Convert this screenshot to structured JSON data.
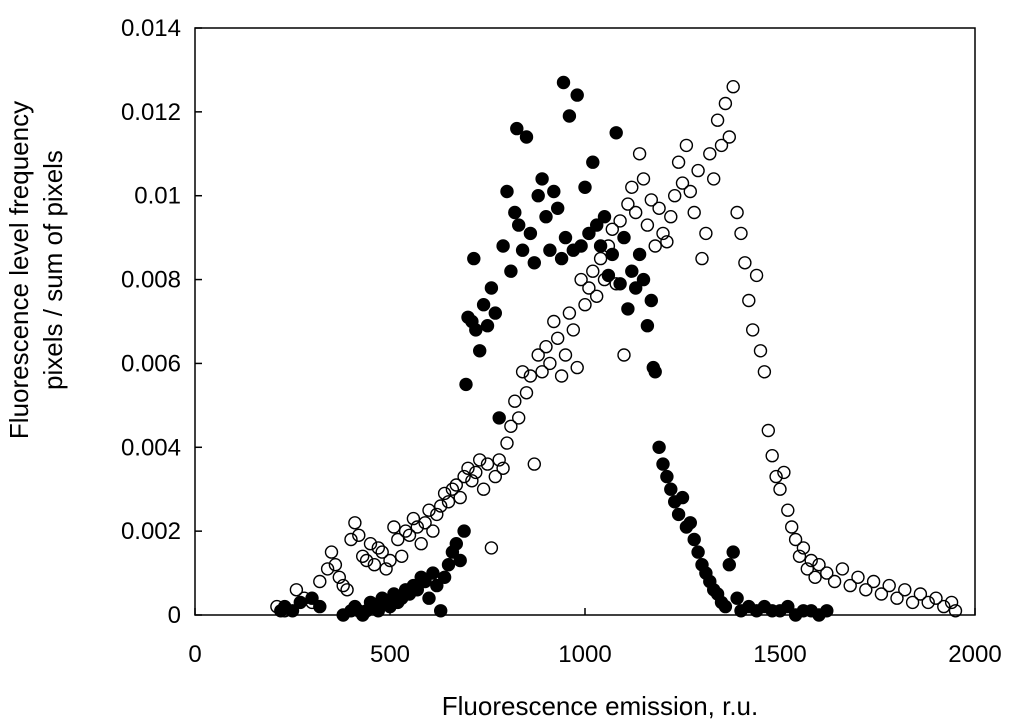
{
  "chart_data": {
    "type": "scatter",
    "title": "",
    "xlabel": "Fluorescence emission, r.u.",
    "ylabel_lines": [
      "Fluorescence level frequency",
      "pixels / sum of pixels"
    ],
    "xlim": [
      0,
      2000
    ],
    "ylim": [
      0,
      0.014
    ],
    "grid": false,
    "legend": "none",
    "x_tick_labels": [
      "0",
      "500",
      "1000",
      "1500",
      "2000"
    ],
    "x_ticks": [
      0,
      500,
      1000,
      1500,
      2000
    ],
    "y_tick_labels": [
      "0",
      "0.002",
      "0.004",
      "0.006",
      "0.008",
      "0.01",
      "0.012",
      "0.014"
    ],
    "y_ticks": [
      0,
      0.002,
      0.004,
      0.006,
      0.008,
      0.01,
      0.012,
      0.014
    ],
    "series": [
      {
        "marker": "filled-circle",
        "color": "#000000",
        "points": [
          [
            220,
            0.0001
          ],
          [
            230,
            0.0002
          ],
          [
            250,
            0.0001
          ],
          [
            270,
            0.0003
          ],
          [
            300,
            0.0004
          ],
          [
            320,
            0.0002
          ],
          [
            380,
            0.0
          ],
          [
            400,
            0.0001
          ],
          [
            410,
            0.0002
          ],
          [
            420,
            0.0001
          ],
          [
            430,
            0.0
          ],
          [
            440,
            0.0001
          ],
          [
            450,
            0.0003
          ],
          [
            460,
            0.0002
          ],
          [
            470,
            0.0001
          ],
          [
            480,
            0.0004
          ],
          [
            490,
            0.0003
          ],
          [
            500,
            0.0002
          ],
          [
            510,
            0.0005
          ],
          [
            520,
            0.0003
          ],
          [
            530,
            0.0004
          ],
          [
            540,
            0.0006
          ],
          [
            550,
            0.0005
          ],
          [
            560,
            0.0007
          ],
          [
            570,
            0.0006
          ],
          [
            580,
            0.0009
          ],
          [
            590,
            0.0008
          ],
          [
            600,
            0.0004
          ],
          [
            610,
            0.001
          ],
          [
            620,
            0.0007
          ],
          [
            630,
            0.0001
          ],
          [
            640,
            0.0009
          ],
          [
            650,
            0.0012
          ],
          [
            660,
            0.0015
          ],
          [
            670,
            0.0017
          ],
          [
            680,
            0.0013
          ],
          [
            690,
            0.002
          ],
          [
            695,
            0.0055
          ],
          [
            700,
            0.0071
          ],
          [
            710,
            0.007
          ],
          [
            715,
            0.0085
          ],
          [
            720,
            0.0068
          ],
          [
            730,
            0.0063
          ],
          [
            740,
            0.0074
          ],
          [
            750,
            0.0069
          ],
          [
            760,
            0.0078
          ],
          [
            770,
            0.0072
          ],
          [
            780,
            0.0047
          ],
          [
            790,
            0.0088
          ],
          [
            800,
            0.0101
          ],
          [
            810,
            0.0082
          ],
          [
            820,
            0.0096
          ],
          [
            825,
            0.0116
          ],
          [
            830,
            0.0093
          ],
          [
            840,
            0.0087
          ],
          [
            850,
            0.0114
          ],
          [
            860,
            0.0091
          ],
          [
            870,
            0.0084
          ],
          [
            880,
            0.01
          ],
          [
            890,
            0.0104
          ],
          [
            900,
            0.0095
          ],
          [
            910,
            0.0087
          ],
          [
            920,
            0.0101
          ],
          [
            930,
            0.0097
          ],
          [
            940,
            0.0085
          ],
          [
            945,
            0.0127
          ],
          [
            950,
            0.009
          ],
          [
            960,
            0.0119
          ],
          [
            970,
            0.0087
          ],
          [
            980,
            0.0124
          ],
          [
            990,
            0.0088
          ],
          [
            1000,
            0.0102
          ],
          [
            1010,
            0.0091
          ],
          [
            1020,
            0.0108
          ],
          [
            1030,
            0.0093
          ],
          [
            1040,
            0.0088
          ],
          [
            1050,
            0.0095
          ],
          [
            1060,
            0.0081
          ],
          [
            1070,
            0.0086
          ],
          [
            1080,
            0.0115
          ],
          [
            1090,
            0.0079
          ],
          [
            1100,
            0.009
          ],
          [
            1110,
            0.0073
          ],
          [
            1120,
            0.0082
          ],
          [
            1130,
            0.0078
          ],
          [
            1140,
            0.0086
          ],
          [
            1150,
            0.008
          ],
          [
            1160,
            0.0069
          ],
          [
            1170,
            0.0075
          ],
          [
            1175,
            0.0059
          ],
          [
            1180,
            0.0058
          ],
          [
            1190,
            0.004
          ],
          [
            1200,
            0.0036
          ],
          [
            1210,
            0.0033
          ],
          [
            1220,
            0.003
          ],
          [
            1230,
            0.0027
          ],
          [
            1240,
            0.0024
          ],
          [
            1250,
            0.0028
          ],
          [
            1260,
            0.0021
          ],
          [
            1270,
            0.0022
          ],
          [
            1280,
            0.0018
          ],
          [
            1290,
            0.0015
          ],
          [
            1300,
            0.0012
          ],
          [
            1310,
            0.001
          ],
          [
            1320,
            0.0008
          ],
          [
            1330,
            0.0006
          ],
          [
            1340,
            0.0005
          ],
          [
            1350,
            0.0003
          ],
          [
            1360,
            0.0002
          ],
          [
            1370,
            0.0012
          ],
          [
            1380,
            0.0015
          ],
          [
            1390,
            0.0004
          ],
          [
            1400,
            0.0001
          ],
          [
            1420,
            0.0002
          ],
          [
            1440,
            0.0001
          ],
          [
            1460,
            0.0002
          ],
          [
            1480,
            0.0001
          ],
          [
            1500,
            0.0001
          ],
          [
            1520,
            0.0002
          ],
          [
            1540,
            0.0
          ],
          [
            1560,
            0.0001
          ],
          [
            1580,
            0.0001
          ],
          [
            1600,
            0.0
          ],
          [
            1620,
            0.0001
          ]
        ]
      },
      {
        "marker": "open-circle",
        "color": "#000000",
        "points": [
          [
            210,
            0.0002
          ],
          [
            230,
            0.0001
          ],
          [
            260,
            0.0006
          ],
          [
            280,
            0.0004
          ],
          [
            300,
            0.0003
          ],
          [
            320,
            0.0008
          ],
          [
            340,
            0.0011
          ],
          [
            350,
            0.0015
          ],
          [
            360,
            0.0012
          ],
          [
            370,
            0.0009
          ],
          [
            380,
            0.0007
          ],
          [
            390,
            0.0006
          ],
          [
            400,
            0.0018
          ],
          [
            410,
            0.0022
          ],
          [
            420,
            0.0019
          ],
          [
            430,
            0.0014
          ],
          [
            440,
            0.0013
          ],
          [
            450,
            0.0017
          ],
          [
            460,
            0.0012
          ],
          [
            470,
            0.0016
          ],
          [
            480,
            0.0015
          ],
          [
            490,
            0.0011
          ],
          [
            500,
            0.0013
          ],
          [
            510,
            0.0021
          ],
          [
            520,
            0.0018
          ],
          [
            530,
            0.0014
          ],
          [
            540,
            0.002
          ],
          [
            550,
            0.0019
          ],
          [
            560,
            0.0023
          ],
          [
            570,
            0.0021
          ],
          [
            580,
            0.0017
          ],
          [
            590,
            0.0022
          ],
          [
            600,
            0.0025
          ],
          [
            610,
            0.002
          ],
          [
            620,
            0.0024
          ],
          [
            630,
            0.0026
          ],
          [
            640,
            0.0029
          ],
          [
            650,
            0.0027
          ],
          [
            660,
            0.003
          ],
          [
            670,
            0.0031
          ],
          [
            680,
            0.0028
          ],
          [
            690,
            0.0033
          ],
          [
            700,
            0.0035
          ],
          [
            710,
            0.0032
          ],
          [
            720,
            0.0034
          ],
          [
            730,
            0.0037
          ],
          [
            740,
            0.003
          ],
          [
            750,
            0.0036
          ],
          [
            760,
            0.0016
          ],
          [
            770,
            0.0033
          ],
          [
            780,
            0.0037
          ],
          [
            790,
            0.0035
          ],
          [
            800,
            0.0041
          ],
          [
            810,
            0.0045
          ],
          [
            820,
            0.0051
          ],
          [
            830,
            0.0047
          ],
          [
            840,
            0.0058
          ],
          [
            850,
            0.0053
          ],
          [
            860,
            0.0057
          ],
          [
            870,
            0.0036
          ],
          [
            880,
            0.0062
          ],
          [
            890,
            0.0058
          ],
          [
            900,
            0.0064
          ],
          [
            910,
            0.006
          ],
          [
            920,
            0.007
          ],
          [
            930,
            0.0066
          ],
          [
            940,
            0.0057
          ],
          [
            950,
            0.0062
          ],
          [
            960,
            0.0072
          ],
          [
            970,
            0.0068
          ],
          [
            980,
            0.0059
          ],
          [
            990,
            0.008
          ],
          [
            1000,
            0.0074
          ],
          [
            1010,
            0.0078
          ],
          [
            1020,
            0.0082
          ],
          [
            1030,
            0.0076
          ],
          [
            1040,
            0.0085
          ],
          [
            1050,
            0.008
          ],
          [
            1060,
            0.0088
          ],
          [
            1070,
            0.0092
          ],
          [
            1080,
            0.0079
          ],
          [
            1090,
            0.0094
          ],
          [
            1100,
            0.0062
          ],
          [
            1110,
            0.0098
          ],
          [
            1120,
            0.0102
          ],
          [
            1130,
            0.0096
          ],
          [
            1140,
            0.011
          ],
          [
            1150,
            0.0104
          ],
          [
            1160,
            0.0093
          ],
          [
            1170,
            0.0099
          ],
          [
            1180,
            0.0088
          ],
          [
            1190,
            0.0097
          ],
          [
            1200,
            0.0091
          ],
          [
            1210,
            0.0089
          ],
          [
            1220,
            0.0095
          ],
          [
            1230,
            0.01
          ],
          [
            1240,
            0.0108
          ],
          [
            1250,
            0.0103
          ],
          [
            1260,
            0.0112
          ],
          [
            1270,
            0.0101
          ],
          [
            1280,
            0.0096
          ],
          [
            1290,
            0.0106
          ],
          [
            1300,
            0.0085
          ],
          [
            1310,
            0.0091
          ],
          [
            1320,
            0.011
          ],
          [
            1330,
            0.0104
          ],
          [
            1340,
            0.0118
          ],
          [
            1350,
            0.0112
          ],
          [
            1360,
            0.0122
          ],
          [
            1370,
            0.0114
          ],
          [
            1380,
            0.0126
          ],
          [
            1390,
            0.0096
          ],
          [
            1400,
            0.0091
          ],
          [
            1410,
            0.0084
          ],
          [
            1420,
            0.0075
          ],
          [
            1430,
            0.0068
          ],
          [
            1440,
            0.0081
          ],
          [
            1450,
            0.0063
          ],
          [
            1460,
            0.0058
          ],
          [
            1470,
            0.0044
          ],
          [
            1480,
            0.0038
          ],
          [
            1490,
            0.0033
          ],
          [
            1500,
            0.003
          ],
          [
            1510,
            0.0034
          ],
          [
            1520,
            0.0025
          ],
          [
            1530,
            0.0021
          ],
          [
            1540,
            0.0018
          ],
          [
            1550,
            0.0014
          ],
          [
            1560,
            0.0016
          ],
          [
            1570,
            0.0011
          ],
          [
            1580,
            0.0013
          ],
          [
            1590,
            0.0009
          ],
          [
            1600,
            0.0012
          ],
          [
            1620,
            0.001
          ],
          [
            1640,
            0.0008
          ],
          [
            1660,
            0.0011
          ],
          [
            1680,
            0.0007
          ],
          [
            1700,
            0.0009
          ],
          [
            1720,
            0.0006
          ],
          [
            1740,
            0.0008
          ],
          [
            1760,
            0.0005
          ],
          [
            1780,
            0.0007
          ],
          [
            1800,
            0.0004
          ],
          [
            1820,
            0.0006
          ],
          [
            1840,
            0.0003
          ],
          [
            1860,
            0.0005
          ],
          [
            1880,
            0.0003
          ],
          [
            1900,
            0.0004
          ],
          [
            1920,
            0.0002
          ],
          [
            1940,
            0.0003
          ],
          [
            1950,
            0.0001
          ]
        ]
      }
    ]
  }
}
